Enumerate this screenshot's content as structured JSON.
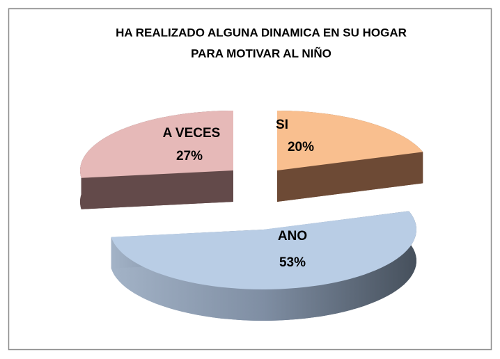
{
  "chart_data": {
    "type": "pie3d",
    "title": [
      "HA REALIZADO ALGUNA DINAMICA EN SU HOGAR",
      "PARA MOTIVAR AL NIÑO"
    ],
    "categories": [
      "SI",
      "ANO",
      "A VECES"
    ],
    "values": [
      20,
      53,
      27
    ],
    "value_labels": [
      "20%",
      "53%",
      "27%"
    ],
    "colors": [
      "#f9bf8f",
      "#b9cde5",
      "#e6b9b8"
    ]
  }
}
